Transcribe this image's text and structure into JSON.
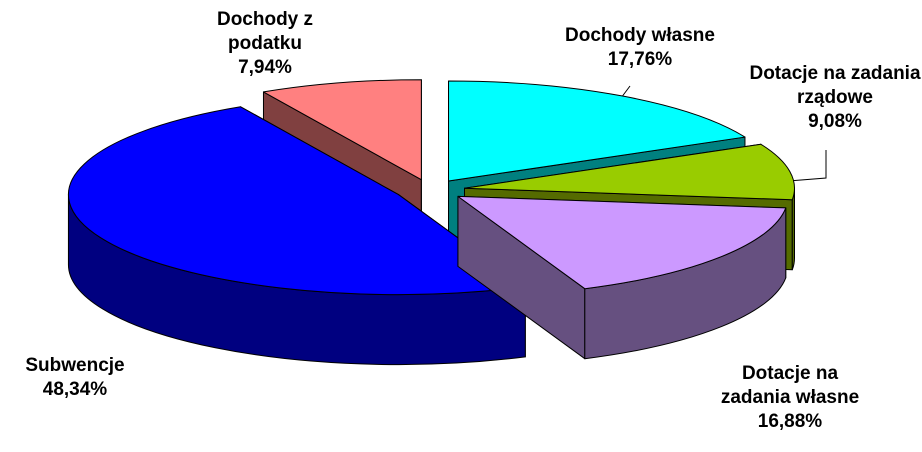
{
  "chart_data": {
    "type": "pie",
    "categories": [
      "Dochody własne",
      "Dotacje na zadania rządowe",
      "Dotacje na zadania własne",
      "Subwencje",
      "Dochody z podatku"
    ],
    "values": [
      17.76,
      9.08,
      16.88,
      48.34,
      7.94
    ],
    "value_labels": [
      "17,76%",
      "9,08%",
      "16,88%",
      "48,34%",
      "7,94%"
    ],
    "colors": [
      "#00ffff",
      "#99cc00",
      "#cc99ff",
      "#0000ff",
      "#ff8080"
    ],
    "side_colors": [
      "#008080",
      "#556b00",
      "#665080",
      "#000080",
      "#804040"
    ]
  }
}
